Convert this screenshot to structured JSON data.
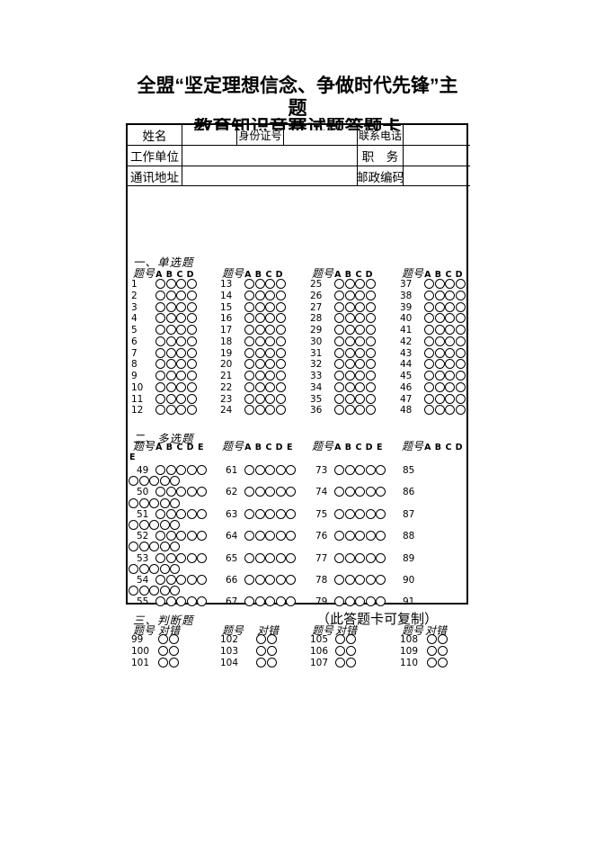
{
  "colors": {
    "ink": "#000000",
    "paper": "#ffffff"
  },
  "title": {
    "line1": "全盟“坚定理想信念、争做时代先锋”主",
    "line2": "题",
    "line3_hidden": "教育知识竞赛试题答题卡"
  },
  "form": {
    "fields": {
      "name": "姓名",
      "id_number": "身份证号",
      "phone": "联系电话",
      "work_unit": "工作单位",
      "position": "职　务",
      "address": "通讯地址",
      "postal_code": "邮政编码"
    }
  },
  "sections": {
    "single_choice": {
      "heading": "一、单选题",
      "qno_label": "题号",
      "options": [
        "A",
        "B",
        "C",
        "D"
      ],
      "groups": [
        [
          1,
          2,
          3,
          4,
          5,
          6,
          7,
          8,
          9,
          10,
          11,
          12
        ],
        [
          13,
          14,
          15,
          16,
          17,
          18,
          19,
          20,
          21,
          22,
          23,
          24
        ],
        [
          25,
          26,
          27,
          28,
          29,
          30,
          31,
          32,
          33,
          34,
          35,
          36
        ],
        [
          37,
          38,
          39,
          40,
          41,
          42,
          43,
          44,
          45,
          46,
          47,
          48
        ]
      ]
    },
    "multi_choice": {
      "heading": "二、多选题",
      "qno_label": "题号",
      "options": [
        "A",
        "B",
        "C",
        "D",
        "E"
      ],
      "wrapped_letter": "E",
      "groups": [
        [
          49,
          50,
          51,
          52,
          53,
          54,
          55
        ],
        [
          61,
          62,
          63,
          64,
          65,
          66,
          67
        ],
        [
          73,
          74,
          75,
          76,
          77,
          78,
          79
        ],
        [
          85,
          86,
          87,
          88,
          89,
          90,
          91
        ]
      ]
    },
    "judgement": {
      "heading": "三、判断题",
      "qno_label": "题号",
      "options_label": "对错",
      "options_count": 2,
      "groups": [
        [
          99,
          100,
          101
        ],
        [
          102,
          103,
          104
        ],
        [
          105,
          106,
          107
        ],
        [
          108,
          109,
          110
        ]
      ]
    }
  },
  "footnote": "（此答题卡可复制）"
}
